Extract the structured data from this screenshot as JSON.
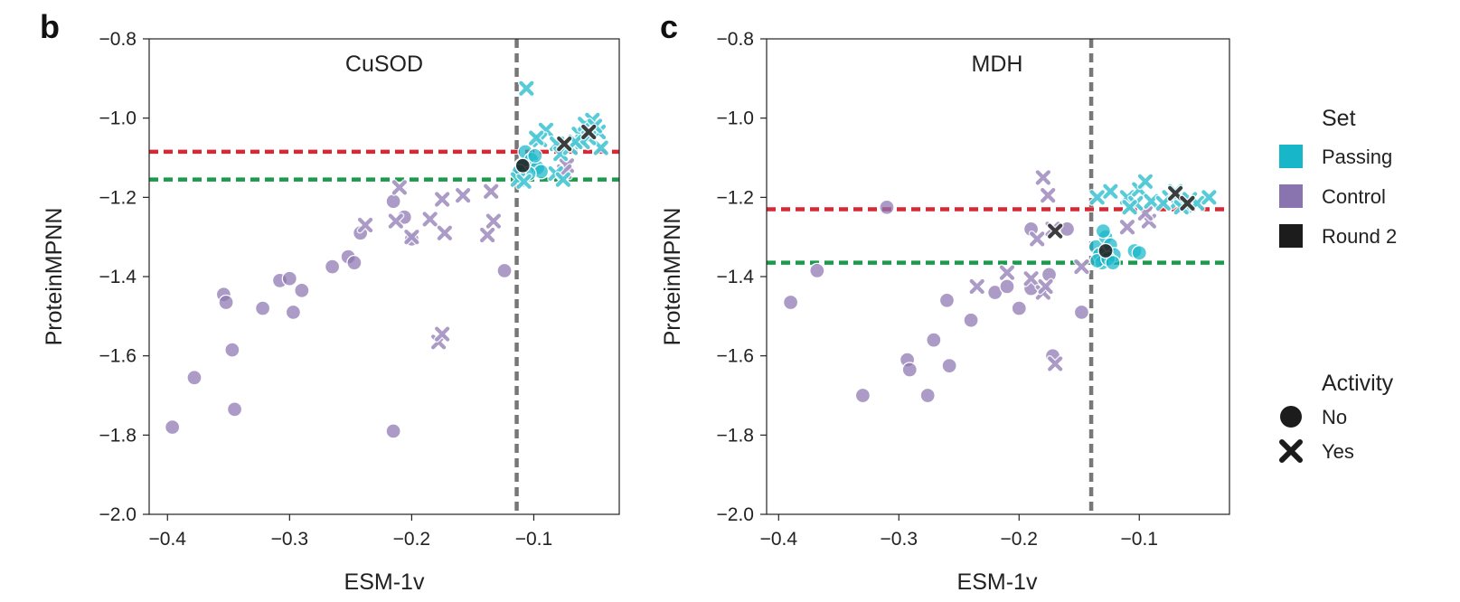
{
  "colors": {
    "passing": "#17b7c9",
    "control": "#8a74b0",
    "round2": "#1c1c1c",
    "esm_threshold": "#777777",
    "red_threshold": "#d62936",
    "green_threshold": "#1a9a4b"
  },
  "legend": {
    "set_title": "Set",
    "set_items": [
      {
        "label": "Passing",
        "color": "#17b7c9"
      },
      {
        "label": "Control",
        "color": "#8a74b0"
      },
      {
        "label": "Round 2",
        "color": "#1c1c1c"
      }
    ],
    "activity_title": "Activity",
    "activity_items": [
      {
        "label": "No",
        "marker": "circle"
      },
      {
        "label": "Yes",
        "marker": "x"
      }
    ]
  },
  "chart_data": [
    {
      "panel": "b",
      "type": "scatter",
      "title": "CuSOD",
      "xlabel": "ESM-1v",
      "ylabel": "ProteinMPNN",
      "xlim": [
        -0.415,
        -0.03
      ],
      "ylim": [
        -2.0,
        -0.8
      ],
      "xticks": [
        -0.4,
        -0.3,
        -0.2,
        -0.1
      ],
      "xtick_labels": [
        "−0.4",
        "−0.3",
        "−0.2",
        "−0.1"
      ],
      "yticks": [
        -0.8,
        -1.0,
        -1.2,
        -1.4,
        -1.6,
        -1.8,
        -2.0
      ],
      "ytick_labels": [
        "−0.8",
        "−1.0",
        "−1.2",
        "−1.4",
        "−1.6",
        "−1.8",
        "−2.0"
      ],
      "vline": -0.114,
      "hline_red": -1.085,
      "hline_green": -1.155,
      "series": [
        {
          "name": "Control",
          "activity": "No",
          "points": [
            [
              -0.396,
              -1.78
            ],
            [
              -0.378,
              -1.655
            ],
            [
              -0.354,
              -1.445
            ],
            [
              -0.352,
              -1.465
            ],
            [
              -0.347,
              -1.585
            ],
            [
              -0.345,
              -1.735
            ],
            [
              -0.322,
              -1.48
            ],
            [
              -0.308,
              -1.41
            ],
            [
              -0.3,
              -1.405
            ],
            [
              -0.297,
              -1.49
            ],
            [
              -0.29,
              -1.435
            ],
            [
              -0.265,
              -1.375
            ],
            [
              -0.252,
              -1.35
            ],
            [
              -0.247,
              -1.365
            ],
            [
              -0.242,
              -1.29
            ],
            [
              -0.215,
              -1.21
            ],
            [
              -0.215,
              -1.79
            ],
            [
              -0.206,
              -1.25
            ],
            [
              -0.2,
              -1.305
            ],
            [
              -0.124,
              -1.385
            ]
          ]
        },
        {
          "name": "Control",
          "activity": "Yes",
          "points": [
            [
              -0.238,
              -1.27
            ],
            [
              -0.21,
              -1.175
            ],
            [
              -0.213,
              -1.26
            ],
            [
              -0.2,
              -1.3
            ],
            [
              -0.185,
              -1.255
            ],
            [
              -0.175,
              -1.205
            ],
            [
              -0.173,
              -1.29
            ],
            [
              -0.158,
              -1.195
            ],
            [
              -0.135,
              -1.185
            ],
            [
              -0.133,
              -1.26
            ],
            [
              -0.138,
              -1.295
            ],
            [
              -0.178,
              -1.565
            ],
            [
              -0.175,
              -1.545
            ],
            [
              -0.073,
              -1.12
            ],
            [
              -0.075,
              -1.135
            ]
          ]
        },
        {
          "name": "Passing",
          "activity": "No",
          "points": [
            [
              -0.107,
              -1.085
            ],
            [
              -0.102,
              -1.105
            ],
            [
              -0.097,
              -1.125
            ],
            [
              -0.094,
              -1.135
            ],
            [
              -0.11,
              -1.12
            ],
            [
              -0.104,
              -1.14
            ],
            [
              -0.099,
              -1.095
            ],
            [
              -0.112,
              -1.135
            ]
          ]
        },
        {
          "name": "Passing",
          "activity": "Yes",
          "points": [
            [
              -0.106,
              -0.925
            ],
            [
              -0.09,
              -1.03
            ],
            [
              -0.095,
              -1.055
            ],
            [
              -0.081,
              -1.065
            ],
            [
              -0.078,
              -1.09
            ],
            [
              -0.07,
              -1.075
            ],
            [
              -0.063,
              -1.04
            ],
            [
              -0.058,
              -1.015
            ],
            [
              -0.052,
              -1.005
            ],
            [
              -0.047,
              -1.035
            ],
            [
              -0.045,
              -1.075
            ],
            [
              -0.055,
              -1.05
            ],
            [
              -0.082,
              -1.14
            ],
            [
              -0.06,
              -1.06
            ],
            [
              -0.113,
              -1.155
            ],
            [
              -0.108,
              -1.16
            ],
            [
              -0.076,
              -1.155
            ],
            [
              -0.05,
              -1.02
            ],
            [
              -0.098,
              -1.05
            ],
            [
              -0.066,
              -1.06
            ]
          ]
        },
        {
          "name": "Round 2",
          "activity": "No",
          "points": [
            [
              -0.109,
              -1.12
            ]
          ]
        },
        {
          "name": "Round 2",
          "activity": "Yes",
          "points": [
            [
              -0.055,
              -1.035
            ],
            [
              -0.075,
              -1.065
            ]
          ]
        }
      ]
    },
    {
      "panel": "c",
      "type": "scatter",
      "title": "MDH",
      "xlabel": "ESM-1v",
      "ylabel": "ProteinMPNN",
      "xlim": [
        -0.41,
        -0.025
      ],
      "ylim": [
        -2.0,
        -0.8
      ],
      "xticks": [
        -0.4,
        -0.3,
        -0.2,
        -0.1
      ],
      "xtick_labels": [
        "−0.4",
        "−0.3",
        "−0.2",
        "−0.1"
      ],
      "yticks": [
        -0.8,
        -1.0,
        -1.2,
        -1.4,
        -1.6,
        -1.8,
        -2.0
      ],
      "ytick_labels": [
        "−0.8",
        "−1.0",
        "−1.2",
        "−1.4",
        "−1.6",
        "−1.8",
        "−2.0"
      ],
      "vline": -0.14,
      "hline_red": -1.23,
      "hline_green": -1.365,
      "series": [
        {
          "name": "Control",
          "activity": "No",
          "points": [
            [
              -0.39,
              -1.465
            ],
            [
              -0.368,
              -1.385
            ],
            [
              -0.31,
              -1.225
            ],
            [
              -0.33,
              -1.7
            ],
            [
              -0.293,
              -1.61
            ],
            [
              -0.291,
              -1.635
            ],
            [
              -0.276,
              -1.7
            ],
            [
              -0.271,
              -1.56
            ],
            [
              -0.26,
              -1.46
            ],
            [
              -0.258,
              -1.625
            ],
            [
              -0.24,
              -1.51
            ],
            [
              -0.22,
              -1.44
            ],
            [
              -0.21,
              -1.425
            ],
            [
              -0.2,
              -1.48
            ],
            [
              -0.19,
              -1.43
            ],
            [
              -0.19,
              -1.28
            ],
            [
              -0.175,
              -1.395
            ],
            [
              -0.172,
              -1.6
            ],
            [
              -0.16,
              -1.28
            ],
            [
              -0.148,
              -1.49
            ]
          ]
        },
        {
          "name": "Control",
          "activity": "Yes",
          "points": [
            [
              -0.235,
              -1.425
            ],
            [
              -0.21,
              -1.39
            ],
            [
              -0.19,
              -1.405
            ],
            [
              -0.18,
              -1.15
            ],
            [
              -0.176,
              -1.195
            ],
            [
              -0.185,
              -1.305
            ],
            [
              -0.172,
              -1.28
            ],
            [
              -0.17,
              -1.62
            ],
            [
              -0.18,
              -1.44
            ],
            [
              -0.178,
              -1.425
            ],
            [
              -0.148,
              -1.375
            ],
            [
              -0.11,
              -1.275
            ],
            [
              -0.092,
              -1.26
            ],
            [
              -0.095,
              -1.24
            ]
          ]
        },
        {
          "name": "Passing",
          "activity": "No",
          "points": [
            [
              -0.136,
              -1.325
            ],
            [
              -0.133,
              -1.345
            ],
            [
              -0.131,
              -1.365
            ],
            [
              -0.128,
              -1.3
            ],
            [
              -0.124,
              -1.32
            ],
            [
              -0.121,
              -1.345
            ],
            [
              -0.135,
              -1.36
            ],
            [
              -0.126,
              -1.355
            ],
            [
              -0.104,
              -1.335
            ],
            [
              -0.1,
              -1.34
            ],
            [
              -0.13,
              -1.285
            ],
            [
              -0.122,
              -1.365
            ]
          ]
        },
        {
          "name": "Passing",
          "activity": "Yes",
          "points": [
            [
              -0.135,
              -1.2
            ],
            [
              -0.124,
              -1.185
            ],
            [
              -0.11,
              -1.2
            ],
            [
              -0.1,
              -1.18
            ],
            [
              -0.095,
              -1.16
            ],
            [
              -0.103,
              -1.215
            ],
            [
              -0.09,
              -1.21
            ],
            [
              -0.075,
              -1.2
            ],
            [
              -0.07,
              -1.185
            ],
            [
              -0.068,
              -1.21
            ],
            [
              -0.062,
              -1.22
            ],
            [
              -0.058,
              -1.205
            ],
            [
              -0.052,
              -1.215
            ],
            [
              -0.042,
              -1.2
            ],
            [
              -0.108,
              -1.225
            ],
            [
              -0.08,
              -1.215
            ],
            [
              -0.065,
              -1.225
            ]
          ]
        },
        {
          "name": "Round 2",
          "activity": "No",
          "points": [
            [
              -0.128,
              -1.335
            ]
          ]
        },
        {
          "name": "Round 2",
          "activity": "Yes",
          "points": [
            [
              -0.17,
              -1.285
            ],
            [
              -0.07,
              -1.19
            ],
            [
              -0.06,
              -1.215
            ]
          ]
        }
      ]
    }
  ]
}
